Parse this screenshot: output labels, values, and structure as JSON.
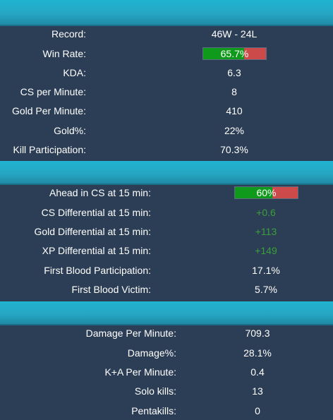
{
  "general": {
    "record": {
      "label": "Record:",
      "value": "46W - 24L"
    },
    "win_rate": {
      "label": "Win Rate:",
      "value": "65.7%",
      "fraction": 0.657
    },
    "kda": {
      "label": "KDA:",
      "value": "6.3"
    },
    "cs_per_minute": {
      "label": "CS per Minute:",
      "value": "8"
    },
    "gold_per_minute": {
      "label": "Gold Per Minute:",
      "value": "410"
    },
    "gold_pct": {
      "label": "Gold%:",
      "value": "22%"
    },
    "kill_participation": {
      "label": "Kill Participation:",
      "value": "70.3%"
    }
  },
  "early": {
    "ahead_cs": {
      "label": "Ahead in CS at 15 min:",
      "value": "60%",
      "fraction": 0.6
    },
    "cs_diff": {
      "label": "CS Differential at 15 min:",
      "value": "+0.6"
    },
    "gold_diff": {
      "label": "Gold Differential at 15 min:",
      "value": "+113"
    },
    "xp_diff": {
      "label": "XP Differential at 15 min:",
      "value": "+149"
    },
    "first_blood_participation": {
      "label": "First Blood Participation:",
      "value": "17.1%"
    },
    "first_blood_victim": {
      "label": "First Blood Victim:",
      "value": "5.7%"
    }
  },
  "combat": {
    "damage_per_minute": {
      "label": "Damage Per Minute:",
      "value": "709.3"
    },
    "damage_pct": {
      "label": "Damage%:",
      "value": "28.1%"
    },
    "ka_per_minute": {
      "label": "K+A Per Minute:",
      "value": "0.4"
    },
    "solo_kills": {
      "label": "Solo kills:",
      "value": "13"
    },
    "pentakills": {
      "label": "Pentakills:",
      "value": "0"
    }
  },
  "colors": {
    "background": "#2c3e55",
    "header": "#27a7c4",
    "bar_win": "#0f9a1b",
    "bar_loss": "#cc4a4a",
    "positive_text": "#3a9f3a"
  }
}
